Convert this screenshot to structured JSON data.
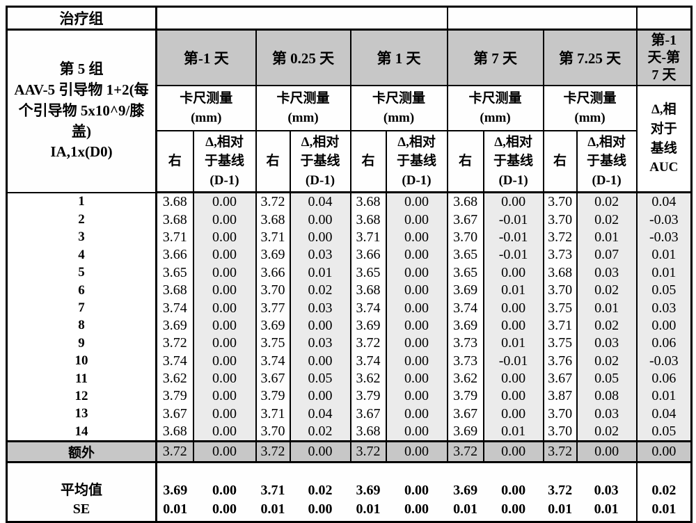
{
  "header": {
    "top_left": "治疗组",
    "group_label": "第 5 组\nAAV-5 引导物 1+2(每\n个引导物 5x10^9/膝\n盖)\nIA,1x(D0)",
    "days": [
      "第-1 天",
      "第 0.25 天",
      "第 1 天",
      "第 7 天",
      "第 7.25 天"
    ],
    "last_day": "第-1\n天-第\n7 天",
    "measure": "卡尺测量\n(mm)",
    "right": "右",
    "delta": "Δ,相对\n于基线\n(D-1)",
    "auc": "Δ,相\n对于\n基线\nAUC"
  },
  "colors": {
    "header_gray": "#c7c7c7",
    "delta_shade": "#ebebeb",
    "border": "#000000"
  },
  "rows": [
    {
      "label": "1",
      "values": [
        "3.68",
        "0.00",
        "3.72",
        "0.04",
        "3.68",
        "0.00",
        "3.68",
        "0.00",
        "3.70",
        "0.02",
        "0.04"
      ]
    },
    {
      "label": "2",
      "values": [
        "3.68",
        "0.00",
        "3.68",
        "0.00",
        "3.68",
        "0.00",
        "3.67",
        "-0.01",
        "3.70",
        "0.02",
        "-0.03"
      ]
    },
    {
      "label": "3",
      "values": [
        "3.71",
        "0.00",
        "3.71",
        "0.00",
        "3.71",
        "0.00",
        "3.70",
        "-0.01",
        "3.72",
        "0.01",
        "-0.03"
      ]
    },
    {
      "label": "4",
      "values": [
        "3.66",
        "0.00",
        "3.69",
        "0.03",
        "3.66",
        "0.00",
        "3.65",
        "-0.01",
        "3.73",
        "0.07",
        "0.01"
      ]
    },
    {
      "label": "5",
      "values": [
        "3.65",
        "0.00",
        "3.66",
        "0.01",
        "3.65",
        "0.00",
        "3.65",
        "0.00",
        "3.68",
        "0.03",
        "0.01"
      ]
    },
    {
      "label": "6",
      "values": [
        "3.68",
        "0.00",
        "3.70",
        "0.02",
        "3.68",
        "0.00",
        "3.69",
        "0.01",
        "3.70",
        "0.02",
        "0.05"
      ]
    },
    {
      "label": "7",
      "values": [
        "3.74",
        "0.00",
        "3.77",
        "0.03",
        "3.74",
        "0.00",
        "3.74",
        "0.00",
        "3.75",
        "0.01",
        "0.03"
      ]
    },
    {
      "label": "8",
      "values": [
        "3.69",
        "0.00",
        "3.69",
        "0.00",
        "3.69",
        "0.00",
        "3.69",
        "0.00",
        "3.71",
        "0.02",
        "0.00"
      ]
    },
    {
      "label": "9",
      "values": [
        "3.72",
        "0.00",
        "3.75",
        "0.03",
        "3.72",
        "0.00",
        "3.73",
        "0.01",
        "3.75",
        "0.03",
        "0.06"
      ]
    },
    {
      "label": "10",
      "values": [
        "3.74",
        "0.00",
        "3.74",
        "0.00",
        "3.74",
        "0.00",
        "3.73",
        "-0.01",
        "3.76",
        "0.02",
        "-0.03"
      ]
    },
    {
      "label": "11",
      "values": [
        "3.62",
        "0.00",
        "3.67",
        "0.05",
        "3.62",
        "0.00",
        "3.62",
        "0.00",
        "3.67",
        "0.05",
        "0.06"
      ]
    },
    {
      "label": "12",
      "values": [
        "3.79",
        "0.00",
        "3.79",
        "0.00",
        "3.79",
        "0.00",
        "3.79",
        "0.00",
        "3.87",
        "0.08",
        "0.01"
      ]
    },
    {
      "label": "13",
      "values": [
        "3.67",
        "0.00",
        "3.71",
        "0.04",
        "3.67",
        "0.00",
        "3.67",
        "0.00",
        "3.70",
        "0.03",
        "0.04"
      ]
    },
    {
      "label": "14",
      "values": [
        "3.68",
        "0.00",
        "3.70",
        "0.02",
        "3.68",
        "0.00",
        "3.69",
        "0.01",
        "3.70",
        "0.02",
        "0.05"
      ]
    }
  ],
  "extra_row": {
    "label": "额外",
    "values": [
      "3.72",
      "0.00",
      "3.72",
      "0.00",
      "3.72",
      "0.00",
      "3.72",
      "0.00",
      "3.72",
      "0.00",
      "0.00"
    ]
  },
  "summary": {
    "mean_label": "平均值",
    "se_label": "SE",
    "mean": [
      "3.69",
      "0.00",
      "3.71",
      "0.02",
      "3.69",
      "0.00",
      "3.69",
      "0.00",
      "3.72",
      "0.03",
      "0.02"
    ],
    "se": [
      "0.01",
      "0.00",
      "0.01",
      "0.00",
      "0.01",
      "0.00",
      "0.01",
      "0.00",
      "0.01",
      "0.01",
      "0.01"
    ]
  }
}
